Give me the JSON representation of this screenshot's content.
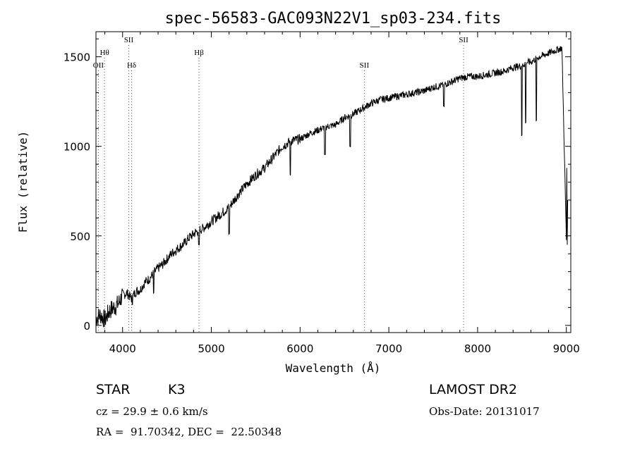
{
  "chart_data": {
    "type": "line",
    "title": "spec-56583-GAC093N22V1_sp03-234.fits",
    "xlabel": "Wavelength (Å)",
    "ylabel": "Flux (relative)",
    "xlim": [
      3700,
      9050
    ],
    "ylim": [
      -40,
      1640
    ],
    "x_ticks": [
      4000,
      5000,
      6000,
      7000,
      8000,
      9000
    ],
    "y_ticks": [
      0,
      500,
      1000,
      1500
    ],
    "grid": false,
    "series": [
      {
        "x": [
          3700,
          3750,
          3800,
          3850,
          3900,
          3950,
          4000,
          4050,
          4100,
          4150,
          4200,
          4250,
          4300,
          4350,
          4400,
          4450,
          4500,
          4550,
          4600,
          4650,
          4700,
          4750,
          4800,
          4850,
          4900,
          4950,
          5000,
          5100,
          5200,
          5300,
          5400,
          5500,
          5600,
          5700,
          5800,
          5900,
          6000,
          6100,
          6200,
          6300,
          6400,
          6500,
          6600,
          6700,
          6800,
          6900,
          7000,
          7100,
          7200,
          7300,
          7400,
          7500,
          7600,
          7700,
          7800,
          7900,
          8000,
          8100,
          8200,
          8300,
          8400,
          8500,
          8550,
          8600,
          8660,
          8700,
          8750,
          8800,
          8850,
          8900,
          8950,
          9000
        ],
        "y": [
          40,
          60,
          30,
          80,
          100,
          120,
          170,
          180,
          150,
          190,
          200,
          240,
          260,
          290,
          320,
          340,
          370,
          400,
          420,
          440,
          460,
          490,
          510,
          530,
          540,
          560,
          580,
          620,
          660,
          730,
          790,
          840,
          880,
          940,
          1000,
          1030,
          1040,
          1070,
          1090,
          1110,
          1120,
          1160,
          1180,
          1210,
          1240,
          1260,
          1270,
          1280,
          1290,
          1300,
          1310,
          1330,
          1340,
          1360,
          1380,
          1390,
          1390,
          1400,
          1410,
          1420,
          1440,
          1450,
          1470,
          1470,
          1490,
          1500,
          1510,
          1520,
          1530,
          1540,
          1550,
          480
        ],
        "dips": [
          {
            "x": 4110,
            "y": 120
          },
          {
            "x": 4350,
            "y": 180
          },
          {
            "x": 4860,
            "y": 450
          },
          {
            "x": 5200,
            "y": 510
          },
          {
            "x": 5890,
            "y": 840
          },
          {
            "x": 6280,
            "y": 950
          },
          {
            "x": 6563,
            "y": 1000
          },
          {
            "x": 7620,
            "y": 1220
          },
          {
            "x": 8498,
            "y": 1060
          },
          {
            "x": 8542,
            "y": 1130
          },
          {
            "x": 8662,
            "y": 1140
          }
        ]
      }
    ],
    "line_markers": [
      {
        "label": "OII",
        "x": 3727,
        "row": 2
      },
      {
        "label": "Hθ",
        "x": 3797,
        "row": 1
      },
      {
        "label": "SII",
        "x": 4069,
        "row": 0
      },
      {
        "label": "Hδ",
        "x": 4102,
        "row": 2
      },
      {
        "label": "Hβ",
        "x": 4861,
        "row": 1
      },
      {
        "label": "SII",
        "x": 6724,
        "row": 2
      },
      {
        "label": "SII",
        "x": 7842,
        "row": 0
      }
    ]
  },
  "info": {
    "class": "STAR",
    "subclass": "K3",
    "survey": "LAMOST DR2",
    "cz": "cz = 29.9 ± 0.6 km/s",
    "obs_date": "Obs-Date: 20131017",
    "coords": "RA =  91.70342, DEC =  22.50348"
  }
}
